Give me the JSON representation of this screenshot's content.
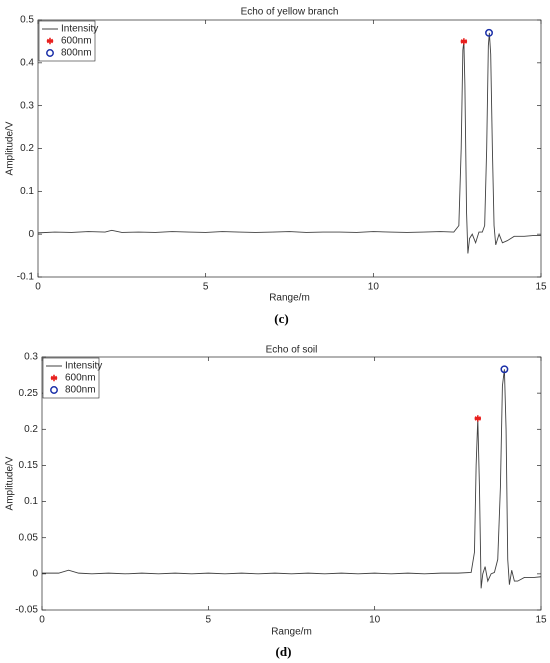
{
  "chart_data": [
    {
      "type": "line",
      "title": "Echo of yellow branch",
      "xlabel": "Range/m",
      "ylabel": "Amplitude/V",
      "caption": "(c)",
      "xlim": [
        0,
        15
      ],
      "xticks": [
        0,
        5,
        10,
        15
      ],
      "ylim": [
        -0.1,
        0.5
      ],
      "yticks": [
        -0.1,
        0,
        0.1,
        0.2,
        0.3,
        0.4,
        0.5
      ],
      "legend": "upper left",
      "series": [
        {
          "name": "Intensity",
          "marker": "line",
          "color": "#404040",
          "x": [
            0,
            0.5,
            1,
            1.5,
            2,
            2.2,
            2.5,
            3,
            3.5,
            4,
            4.5,
            5,
            5.5,
            6,
            6.5,
            7,
            7.5,
            8,
            8.5,
            9,
            9.5,
            10,
            10.5,
            11,
            11.5,
            12,
            12.4,
            12.55,
            12.62,
            12.67,
            12.7,
            12.73,
            12.78,
            12.82,
            12.87,
            12.95,
            13.05,
            13.15,
            13.25,
            13.32,
            13.38,
            13.43,
            13.46,
            13.5,
            13.55,
            13.6,
            13.65,
            13.75,
            13.85,
            14,
            14.2,
            14.5,
            14.8,
            15
          ],
          "values": [
            0.003,
            0.005,
            0.004,
            0.006,
            0.005,
            0.009,
            0.004,
            0.005,
            0.004,
            0.006,
            0.005,
            0.004,
            0.006,
            0.005,
            0.004,
            0.005,
            0.006,
            0.004,
            0.005,
            0.005,
            0.004,
            0.006,
            0.005,
            0.004,
            0.005,
            0.006,
            0.005,
            0.02,
            0.2,
            0.43,
            0.45,
            0.35,
            0.05,
            -0.045,
            -0.01,
            0.0,
            -0.02,
            0.005,
            0.005,
            0.02,
            0.2,
            0.44,
            0.47,
            0.42,
            0.2,
            0.02,
            -0.025,
            0.0,
            -0.02,
            -0.015,
            -0.005,
            -0.005,
            -0.003,
            -0.003
          ]
        },
        {
          "name": "600nm",
          "marker": "asterisk",
          "color": "#e8201e",
          "x": [
            12.7
          ],
          "values": [
            0.45
          ]
        },
        {
          "name": "800nm",
          "marker": "circle",
          "color": "#1a2fa8",
          "x": [
            13.45
          ],
          "values": [
            0.47
          ]
        }
      ]
    },
    {
      "type": "line",
      "title": "Echo of soil",
      "xlabel": "Range/m",
      "ylabel": "Amplitude/V",
      "caption": "(d)",
      "xlim": [
        0,
        15
      ],
      "xticks": [
        0,
        5,
        10,
        15
      ],
      "ylim": [
        -0.05,
        0.3
      ],
      "yticks": [
        -0.05,
        0,
        0.05,
        0.1,
        0.15,
        0.2,
        0.25,
        0.3
      ],
      "legend": "upper left",
      "series": [
        {
          "name": "Intensity",
          "marker": "line",
          "color": "#404040",
          "x": [
            0,
            0.5,
            0.8,
            1.1,
            1.5,
            2,
            2.5,
            3,
            3.5,
            4,
            4.5,
            5,
            5.5,
            6,
            6.5,
            7,
            7.5,
            8,
            8.5,
            9,
            9.5,
            10,
            10.5,
            11,
            11.5,
            12,
            12.5,
            12.9,
            13.0,
            13.05,
            13.1,
            13.15,
            13.2,
            13.25,
            13.32,
            13.4,
            13.5,
            13.6,
            13.7,
            13.78,
            13.84,
            13.9,
            13.95,
            14.0,
            14.05,
            14.12,
            14.2,
            14.3,
            14.5,
            14.8,
            15
          ],
          "values": [
            0.001,
            0.001,
            0.005,
            0.001,
            0.0,
            0.001,
            0.0,
            0.001,
            0.0,
            0.001,
            0.0,
            0.001,
            0.0,
            0.001,
            0.0,
            0.001,
            0.0,
            0.001,
            0.0,
            0.001,
            0.0,
            0.001,
            0.0,
            0.001,
            0.0,
            0.001,
            0.001,
            0.002,
            0.03,
            0.15,
            0.215,
            0.12,
            -0.02,
            0.0,
            0.01,
            -0.01,
            0.0,
            0.002,
            0.02,
            0.12,
            0.26,
            0.283,
            0.2,
            0.02,
            -0.015,
            0.005,
            -0.01,
            -0.01,
            -0.005,
            -0.005,
            -0.004
          ]
        },
        {
          "name": "600nm",
          "marker": "asterisk",
          "color": "#e8201e",
          "x": [
            13.1
          ],
          "values": [
            0.215
          ]
        },
        {
          "name": "800nm",
          "marker": "circle",
          "color": "#1a2fa8",
          "x": [
            13.9
          ],
          "values": [
            0.283
          ]
        }
      ]
    }
  ]
}
